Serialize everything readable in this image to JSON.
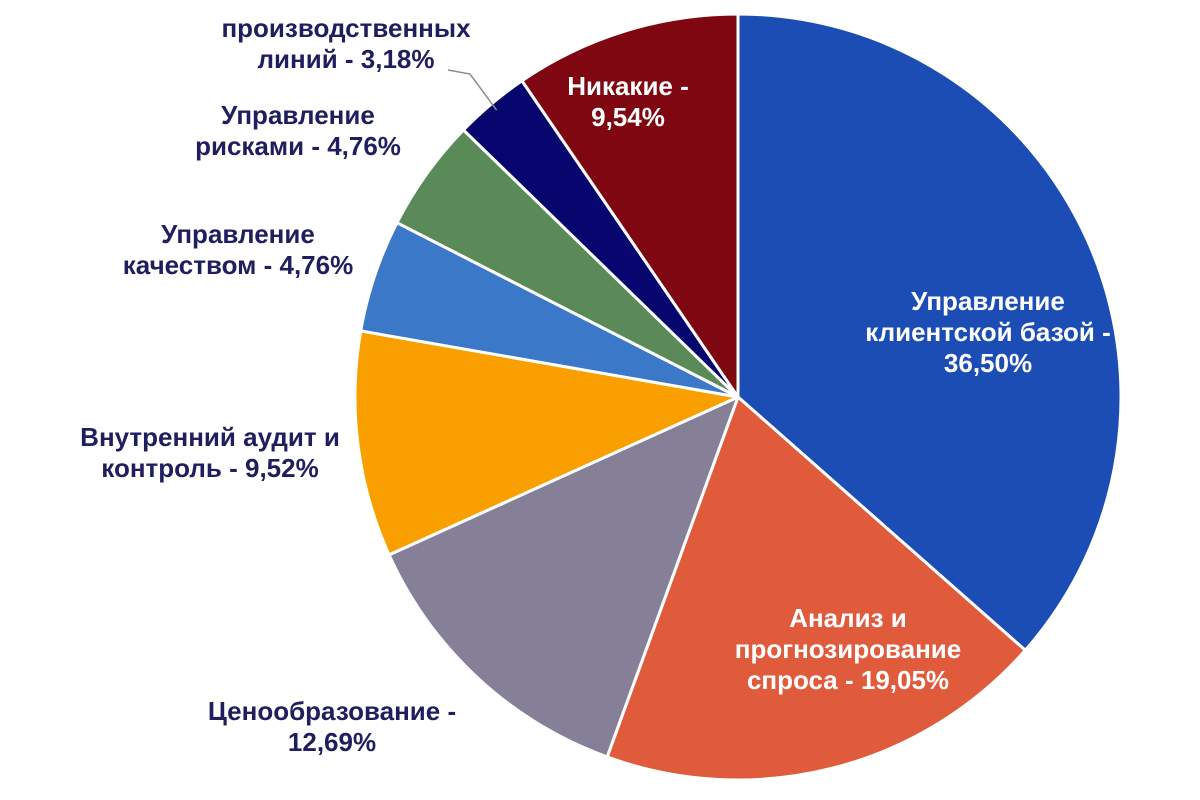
{
  "chart_data": {
    "type": "pie",
    "title": "",
    "start_angle_deg": 0,
    "direction": "clockwise",
    "slices": [
      {
        "label_lines": [
          "Управление",
          "клиентской базой -",
          "36,50%"
        ],
        "value": 36.5,
        "color": "#1b4db5",
        "label_position": "inside"
      },
      {
        "label_lines": [
          "Анализ и",
          "прогнозирование",
          "спроса - 19,05%"
        ],
        "value": 19.05,
        "color": "#e05a3c",
        "label_position": "inside"
      },
      {
        "label_lines": [
          "Ценообразование -",
          "12,69%"
        ],
        "value": 12.69,
        "color": "#857f97",
        "label_position": "outside"
      },
      {
        "label_lines": [
          "Внутренний аудит и",
          "контроль - 9,52%"
        ],
        "value": 9.52,
        "color": "#f9a000",
        "label_position": "outside"
      },
      {
        "label_lines": [
          "Управление",
          "качеством - 4,76%"
        ],
        "value": 4.76,
        "color": "#3b78c8",
        "label_position": "outside"
      },
      {
        "label_lines": [
          "Управление",
          "рисками  - 4,76%"
        ],
        "value": 4.76,
        "color": "#5a8a57",
        "label_position": "outside"
      },
      {
        "label_lines": [
          "производственных",
          "линий - 3,18%"
        ],
        "value": 3.18,
        "color": "#06066e",
        "label_position": "outside",
        "leader_line": true
      },
      {
        "label_lines": [
          "Никакие -",
          "9,54%"
        ],
        "value": 9.54,
        "color": "#7e0711",
        "label_position": "inside"
      }
    ]
  }
}
